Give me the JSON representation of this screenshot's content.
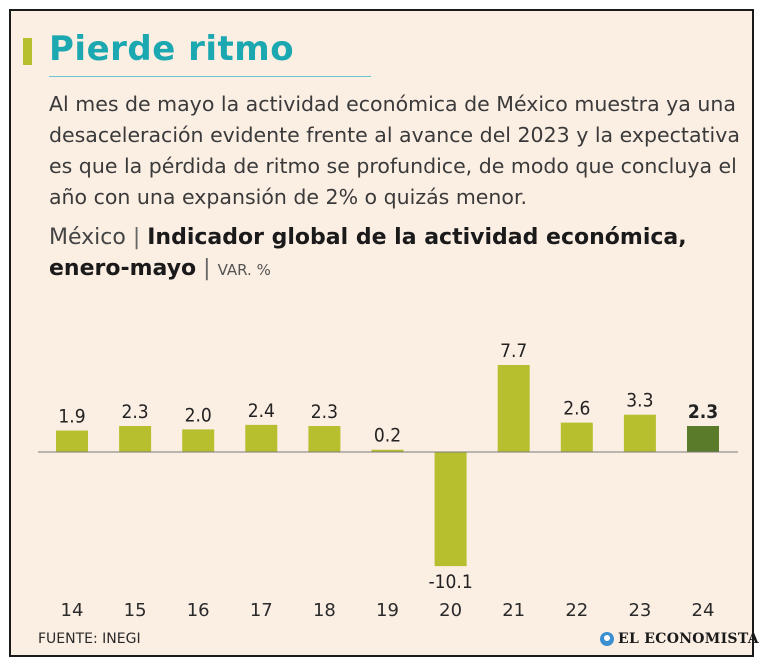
{
  "header": {
    "title": "Pierde ritmo",
    "intro": "Al mes de mayo la actividad económica de México muestra ya una desaceleración evidente frente al avance del 2023 y la expectativa es que la pérdida de ritmo se profundice, de modo que concluya el año con una expansión de 2% o quizás menor."
  },
  "chart_heading": {
    "country": "México",
    "separator": "|",
    "title": "Indicador global de la actividad económica,",
    "title2": "enero-mayo",
    "unit": "VAR. %"
  },
  "footer": {
    "source": "FUENTE: INEGI",
    "brand": "EL ECONOMISTA"
  },
  "colors": {
    "bar": "#b8bf2e",
    "bar_highlight": "#5a7c2a",
    "title": "#1ba8b0",
    "background": "#fbeee3"
  },
  "icons": {
    "brand_logo": "el-economista-logo-icon"
  },
  "chart_data": {
    "type": "bar",
    "title": "Indicador global de la actividad económica, enero-mayo",
    "ylabel": "VAR. %",
    "categories": [
      "14",
      "15",
      "16",
      "17",
      "18",
      "19",
      "20",
      "21",
      "22",
      "23",
      "24"
    ],
    "values": [
      1.9,
      2.3,
      2.0,
      2.4,
      2.3,
      0.2,
      -10.1,
      7.7,
      2.6,
      3.3,
      2.3
    ],
    "labels": [
      "1.9",
      "2.3",
      "2.0",
      "2.4",
      "2.3",
      "0.2",
      "-10.1",
      "7.7",
      "2.6",
      "3.3",
      "2.3"
    ],
    "highlight": "24",
    "grid": false,
    "legend": "none"
  }
}
